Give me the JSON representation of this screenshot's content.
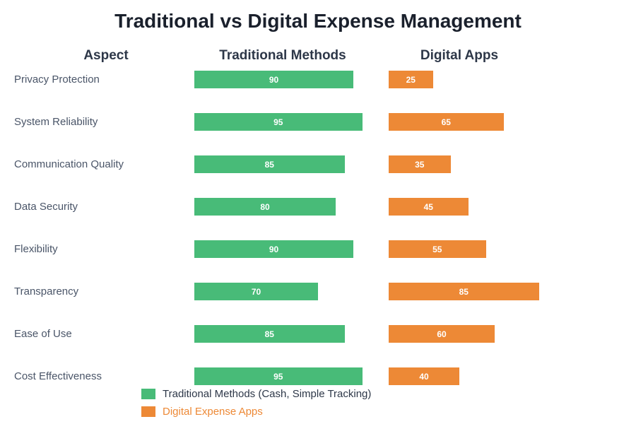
{
  "chart_data": {
    "type": "bar",
    "orientation": "horizontal",
    "title": "Traditional vs Digital Expense Management",
    "column_headers": [
      "Aspect",
      "Traditional Methods",
      "Digital Apps"
    ],
    "categories": [
      "Privacy Protection",
      "System Reliability",
      "Communication Quality",
      "Data Security",
      "Flexibility",
      "Transparency",
      "Ease of Use",
      "Cost Effectiveness"
    ],
    "series": [
      {
        "name": "Traditional Methods (Cash, Simple Tracking)",
        "color": "#48bb78",
        "values": [
          90,
          95,
          85,
          80,
          90,
          70,
          85,
          95
        ]
      },
      {
        "name": "Digital Expense Apps",
        "color": "#ed8936",
        "values": [
          25,
          65,
          35,
          45,
          55,
          85,
          60,
          40
        ]
      }
    ],
    "xlim": [
      0,
      100
    ],
    "grid": false,
    "legend": "bottom-left"
  }
}
